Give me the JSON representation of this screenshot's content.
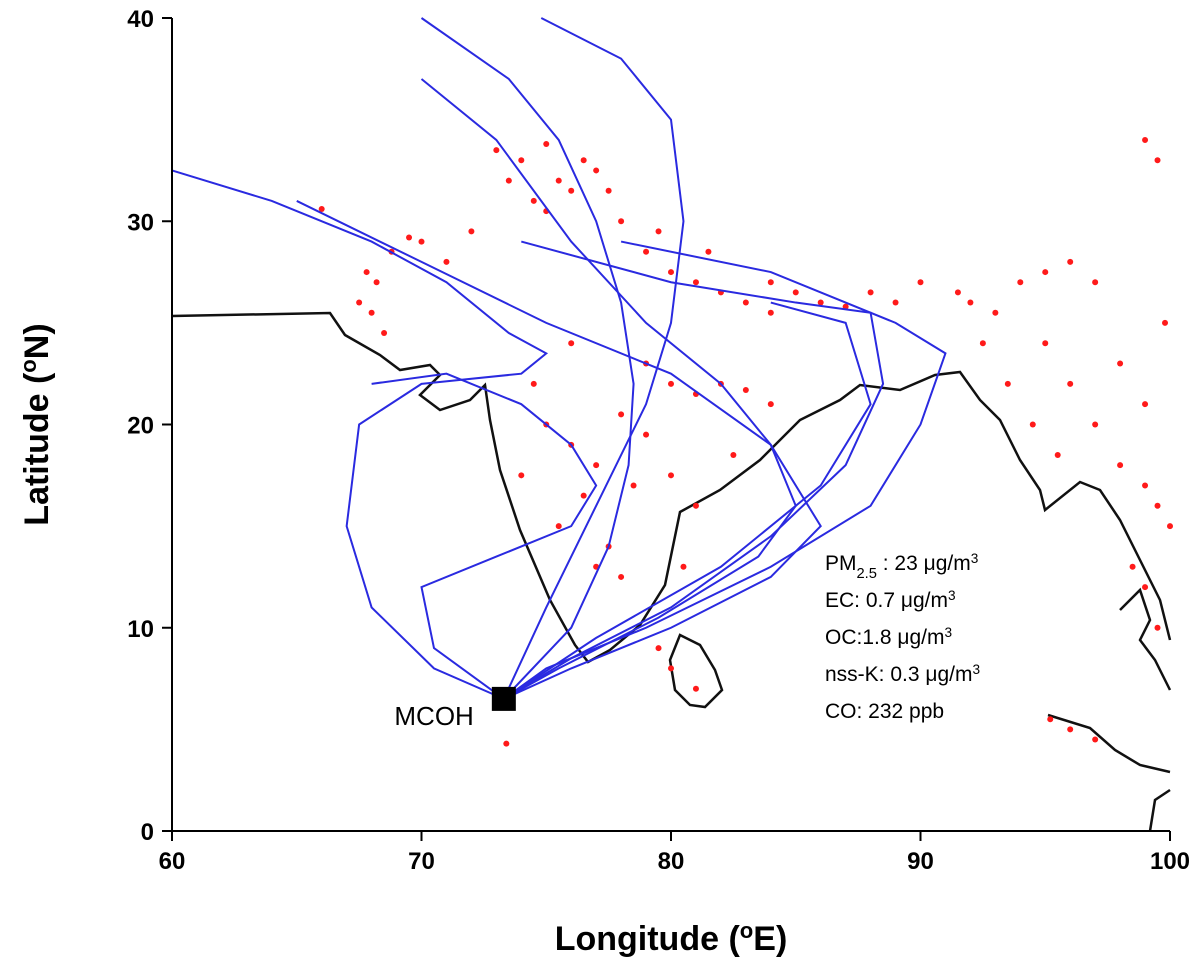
{
  "chart_data": {
    "type": "scatter",
    "x_label": [
      {
        "text": "Longitude ("
      },
      {
        "text": "o",
        "style": "sup"
      },
      {
        "text": "E)"
      }
    ],
    "y_label": [
      {
        "text": "Latitude ("
      },
      {
        "text": "o",
        "style": "sup"
      },
      {
        "text": "N)"
      }
    ],
    "xlim": [
      60,
      100
    ],
    "ylim": [
      0,
      40
    ],
    "xticks": [
      60,
      70,
      80,
      90,
      100
    ],
    "yticks": [
      0,
      10,
      20,
      30,
      40
    ],
    "site": {
      "name": "MCOH",
      "x": 73.3,
      "y": 6.5,
      "color": "#000000"
    },
    "annotations": [
      [
        {
          "text": "PM"
        },
        {
          "text": "2.5",
          "style": "sub"
        },
        {
          "text": " : 23 μg/m"
        },
        {
          "text": "3",
          "style": "sup"
        }
      ],
      [
        {
          "text": "EC: 0.7 μg/m"
        },
        {
          "text": "3",
          "style": "sup"
        }
      ],
      [
        {
          "text": "OC:1.8 μg/m"
        },
        {
          "text": "3",
          "style": "sup"
        }
      ],
      [
        {
          "text": "nss-K: 0.3 μg/m"
        },
        {
          "text": "3",
          "style": "sup"
        }
      ],
      [
        {
          "text": "CO: 232 ppb"
        }
      ]
    ],
    "fires": {
      "color": "#ff1a1a",
      "x": [
        67.5,
        68,
        68.2,
        68.8,
        69.5,
        70,
        68.5,
        67.8,
        71,
        72,
        73,
        74,
        75,
        75.5,
        76,
        74.5,
        76.5,
        77,
        73.5,
        75,
        77.5,
        78,
        79,
        80,
        81,
        82,
        83,
        84,
        85,
        86,
        87,
        79.5,
        81.5,
        84,
        88,
        89,
        74.5,
        75,
        76,
        77,
        78,
        79,
        80,
        81,
        82,
        83,
        84,
        76.5,
        75.5,
        77.5,
        78.5,
        80,
        82.5,
        79,
        76,
        77,
        78,
        74,
        92,
        93,
        94,
        95,
        96,
        97,
        95,
        96,
        97,
        98,
        99,
        94.5,
        93.5,
        95.5,
        98,
        99,
        99.5,
        100,
        98.5,
        99,
        99.5,
        99.8,
        92.5,
        91.5,
        90,
        73.4,
        79.5,
        80,
        81,
        95.2,
        96,
        97,
        99,
        99.5,
        66,
        80.5,
        81
      ],
      "y": [
        26,
        25.5,
        27,
        28.5,
        29.2,
        29,
        24.5,
        27.5,
        28,
        29.5,
        33.5,
        33,
        33.8,
        32,
        31.5,
        31,
        33,
        32.5,
        32,
        30.5,
        31.5,
        30,
        28.5,
        27.5,
        27,
        26.5,
        26,
        25.5,
        26.5,
        26,
        25.8,
        29.5,
        28.5,
        27,
        26.5,
        26,
        22,
        20,
        19,
        18,
        20.5,
        19.5,
        22,
        21.5,
        22,
        21.7,
        21,
        16.5,
        15,
        14,
        17,
        17.5,
        18.5,
        23,
        24,
        13,
        12.5,
        17.5,
        26,
        25.5,
        27,
        27.5,
        28,
        27,
        24,
        22,
        20,
        18,
        17,
        20,
        22,
        18.5,
        23,
        21,
        16,
        15,
        13,
        12,
        10,
        25,
        24,
        26.5,
        27,
        4.3,
        9,
        8,
        7,
        5.5,
        5,
        4.5,
        34,
        33,
        30.6,
        13,
        16
      ]
    },
    "trajectories": {
      "color": "#2a2ae0",
      "lines": [
        {
          "x": [
            70,
            73.5,
            75.5,
            77,
            78,
            78.5,
            78.3,
            77.5,
            76,
            73.3
          ],
          "y": [
            40,
            37,
            34,
            30,
            26,
            22,
            18,
            14,
            10,
            6.5
          ]
        },
        {
          "x": [
            60,
            64,
            68,
            71,
            73.5,
            75,
            74,
            70,
            67.5,
            67,
            68,
            70.5,
            73.3
          ],
          "y": [
            32.5,
            31,
            29,
            27,
            24.5,
            23.5,
            22.5,
            22,
            20,
            15,
            11,
            8,
            6.5
          ]
        },
        {
          "x": [
            65,
            70,
            75,
            80,
            84,
            86,
            84,
            80,
            76,
            73.3
          ],
          "y": [
            31,
            28,
            25,
            22.5,
            19,
            15,
            12.5,
            10,
            8,
            6.5
          ]
        },
        {
          "x": [
            70,
            73,
            76,
            79,
            82,
            84,
            85,
            83.5,
            79.5,
            75.5,
            73.3
          ],
          "y": [
            37,
            34,
            29,
            25,
            22,
            19,
            16,
            13.5,
            10.5,
            8,
            6.5
          ]
        },
        {
          "x": [
            74,
            80,
            85,
            88,
            88.5,
            87,
            84,
            80,
            76,
            73.3
          ],
          "y": [
            29,
            27,
            26,
            25.5,
            22,
            18,
            14.5,
            11,
            8.5,
            6.5
          ]
        },
        {
          "x": [
            78,
            84,
            89,
            91,
            90,
            88,
            84,
            79,
            75,
            73.3
          ],
          "y": [
            29,
            27.5,
            25,
            23.5,
            20,
            16,
            13,
            10,
            8,
            6.5
          ]
        },
        {
          "x": [
            68,
            71,
            74,
            76,
            77,
            76,
            73,
            70,
            70.5,
            73.3
          ],
          "y": [
            22,
            22.5,
            21,
            19,
            17,
            15,
            13.5,
            12,
            9,
            6.5
          ]
        },
        {
          "x": [
            84,
            87,
            88,
            86,
            82,
            77,
            73.3
          ],
          "y": [
            26,
            25,
            21,
            17,
            13,
            9.5,
            6.5
          ]
        },
        {
          "x": [
            74.8,
            78,
            80,
            80.5,
            80,
            79,
            77,
            75,
            73.3
          ],
          "y": [
            40,
            38,
            35,
            30,
            25,
            21,
            16,
            11,
            6.5
          ]
        }
      ]
    }
  }
}
